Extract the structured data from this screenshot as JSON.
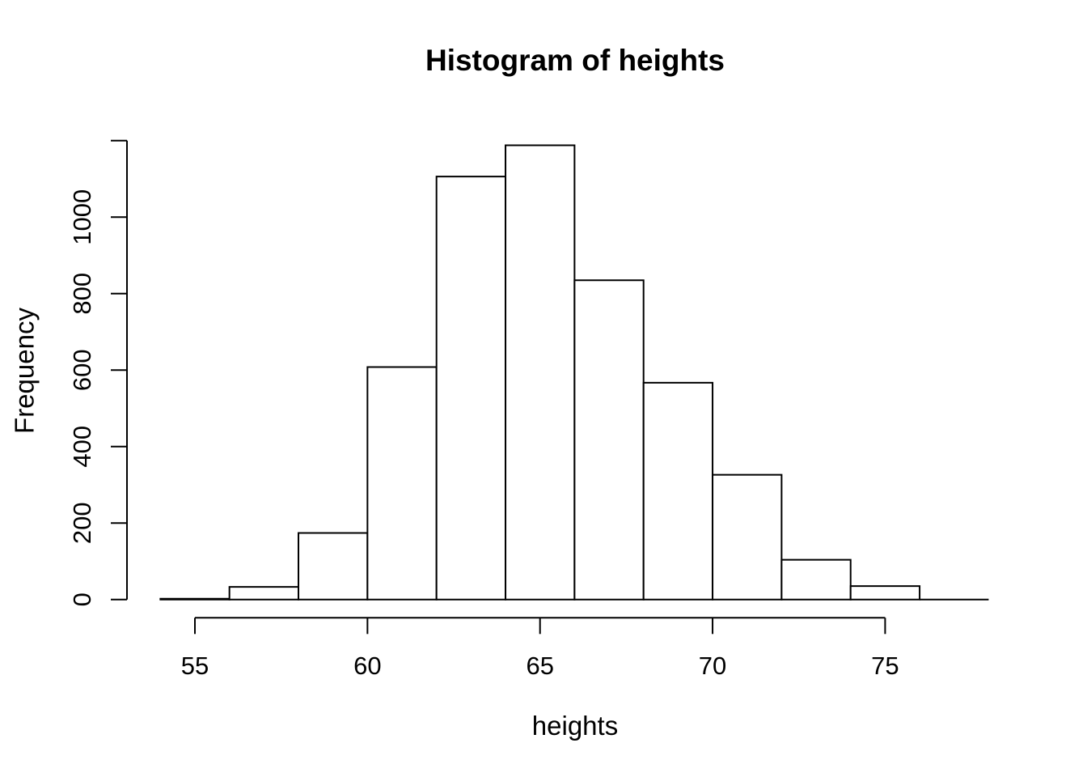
{
  "figure": {
    "background": "#ffffff",
    "text_color": "#000000"
  },
  "chart_data": {
    "type": "bar",
    "subtype": "histogram",
    "title": "Histogram of heights",
    "xlabel": "heights",
    "ylabel": "Frequency",
    "bin_edges": [
      54,
      56,
      58,
      60,
      62,
      64,
      66,
      68,
      70,
      72,
      74,
      76,
      78
    ],
    "counts": [
      2,
      33,
      174,
      608,
      1106,
      1188,
      835,
      567,
      326,
      104,
      35,
      0
    ],
    "x_ticks": [
      "55",
      "60",
      "65",
      "70",
      "75"
    ],
    "x_tick_values": [
      55,
      60,
      65,
      70,
      75
    ],
    "y_ticks": [
      "0",
      "200",
      "400",
      "600",
      "800",
      "1000"
    ],
    "y_tick_values": [
      0,
      200,
      400,
      600,
      800,
      1000
    ],
    "y_axis_top_unlabeled_tick": 1200,
    "xlim": [
      54,
      78
    ],
    "ylim": [
      0,
      1200
    ],
    "grid": false,
    "legend": false,
    "bar_fill": "#ffffff",
    "bar_stroke": "#000000",
    "axis_color": "#000000"
  }
}
